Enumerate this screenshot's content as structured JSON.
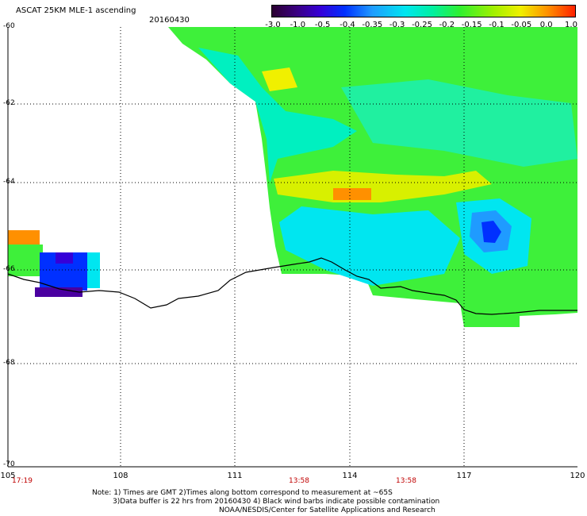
{
  "header": {
    "title": "ASCAT 25KM MLE-1 ascending",
    "date": "20160430"
  },
  "colorbar": {
    "labels": [
      "-3.0",
      "-1.0",
      "-0.5",
      "-0.4",
      "-0.35",
      "-0.3",
      "-0.25",
      "-0.2",
      "-0.15",
      "-0.1",
      "-0.05",
      "0.0",
      "1.0"
    ]
  },
  "map": {
    "lat_labels": [
      "-60",
      "-62",
      "-64",
      "-66",
      "-68",
      "-70"
    ],
    "lon_labels": [
      "105",
      "108",
      "111",
      "114",
      "117",
      "120"
    ],
    "times": [
      "17:19",
      "13:58",
      "13:58"
    ],
    "grid": "dotted",
    "palette": {
      "coast": "#000000",
      "low": "#0010ff",
      "mid": "#00e6f0",
      "high": "#30f030",
      "peak": "#ff9000"
    }
  },
  "notes": {
    "line1": "Note: 1) Times are GMT 2)Times along bottom correspond to measurement at ~65S",
    "line2": "3)Data buffer is 22 hrs from 20160430 4) Black wind barbs indicate possible contamination",
    "line3": "NOAA/NESDIS/Center for Satellite Applications and Research"
  }
}
